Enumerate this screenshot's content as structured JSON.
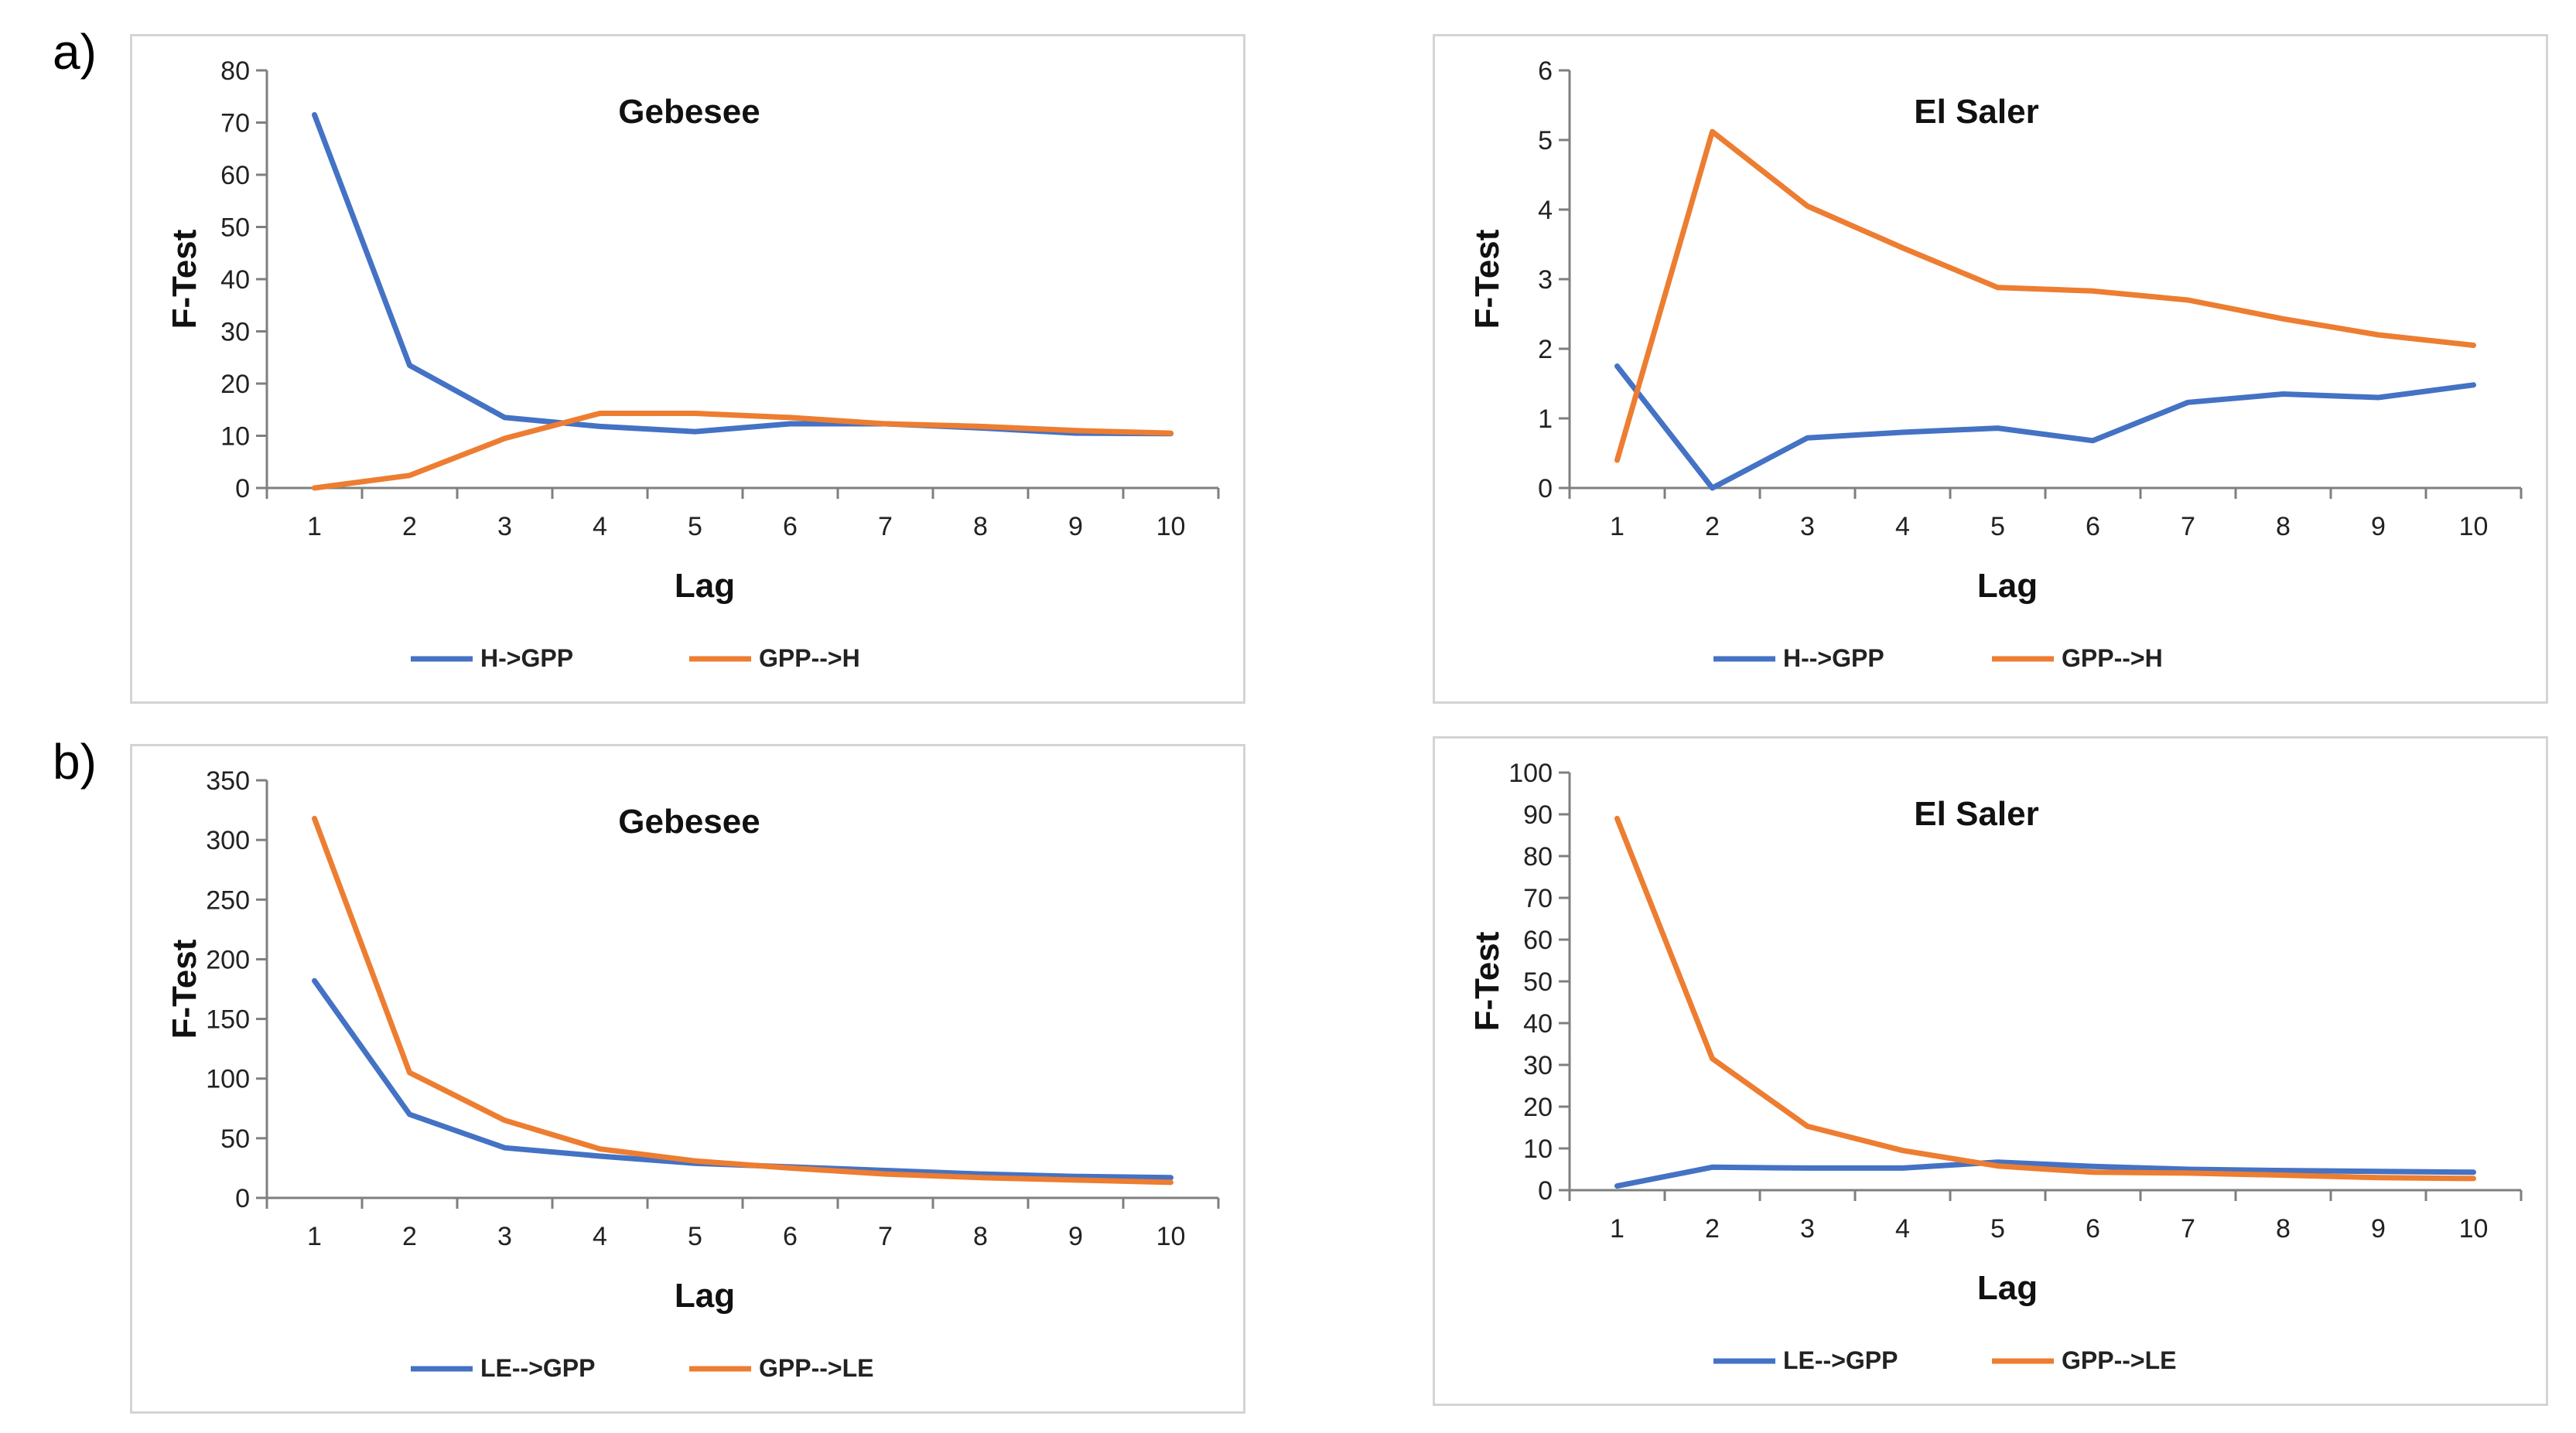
{
  "panels": {
    "a_label": "a)",
    "b_label": "b)"
  },
  "colors": {
    "series1": "#4472C4",
    "series2": "#ED7D31",
    "axis": "#7f7f7f"
  },
  "chart_data": [
    {
      "id": "a-gebesee",
      "type": "line",
      "title": "Gebesee",
      "xlabel": "Lag",
      "ylabel": "F-Test",
      "x": [
        1,
        2,
        3,
        4,
        5,
        6,
        7,
        8,
        9,
        10
      ],
      "x_ticks": [
        "1",
        "2",
        "3",
        "4",
        "5",
        "6",
        "7",
        "8",
        "9",
        "10"
      ],
      "ylim": [
        0,
        80
      ],
      "y_ticks": [
        0,
        10,
        20,
        30,
        40,
        50,
        60,
        70,
        80
      ],
      "series": [
        {
          "name": "H->GPP",
          "values": [
            71.5,
            23.5,
            13.5,
            11.8,
            10.8,
            12.3,
            12.3,
            11.5,
            10.5,
            10.4
          ]
        },
        {
          "name": "GPP-->H",
          "values": [
            0,
            2.4,
            9.5,
            14.3,
            14.3,
            13.5,
            12.3,
            11.8,
            11.0,
            10.5
          ]
        }
      ],
      "legend": "bottom"
    },
    {
      "id": "a-elsaler",
      "type": "line",
      "title": "El Saler",
      "xlabel": "Lag",
      "ylabel": "F-Test",
      "x": [
        1,
        2,
        3,
        4,
        5,
        6,
        7,
        8,
        9,
        10
      ],
      "x_ticks": [
        "1",
        "2",
        "3",
        "4",
        "5",
        "6",
        "7",
        "8",
        "9",
        "10"
      ],
      "ylim": [
        0,
        6
      ],
      "y_ticks": [
        0,
        1,
        2,
        3,
        4,
        5,
        6
      ],
      "series": [
        {
          "name": "H-->GPP",
          "values": [
            1.75,
            0.0,
            0.72,
            0.8,
            0.86,
            0.68,
            1.23,
            1.35,
            1.3,
            1.48
          ]
        },
        {
          "name": "GPP-->H",
          "values": [
            0.4,
            5.12,
            4.05,
            3.45,
            2.88,
            2.83,
            2.7,
            2.43,
            2.2,
            2.05
          ]
        }
      ],
      "legend": "bottom"
    },
    {
      "id": "b-gebesee",
      "type": "line",
      "title": "Gebesee",
      "xlabel": "Lag",
      "ylabel": "F-Test",
      "x": [
        1,
        2,
        3,
        4,
        5,
        6,
        7,
        8,
        9,
        10
      ],
      "x_ticks": [
        "1",
        "2",
        "3",
        "4",
        "5",
        "6",
        "7",
        "8",
        "9",
        "10"
      ],
      "ylim": [
        0,
        350
      ],
      "y_ticks": [
        0,
        50,
        100,
        150,
        200,
        250,
        300,
        350
      ],
      "series": [
        {
          "name": "LE-->GPP",
          "values": [
            182,
            70,
            42,
            35,
            29,
            26,
            23,
            20,
            18,
            17
          ]
        },
        {
          "name": "GPP-->LE",
          "values": [
            318,
            105,
            65,
            41,
            31,
            25,
            20,
            17,
            15,
            13
          ]
        }
      ],
      "legend": "bottom"
    },
    {
      "id": "b-elsaler",
      "type": "line",
      "title": "El Saler",
      "xlabel": "Lag",
      "ylabel": "F-Test",
      "x": [
        1,
        2,
        3,
        4,
        5,
        6,
        7,
        8,
        9,
        10
      ],
      "x_ticks": [
        "1",
        "2",
        "3",
        "4",
        "5",
        "6",
        "7",
        "8",
        "9",
        "10"
      ],
      "ylim": [
        0,
        100
      ],
      "y_ticks": [
        0,
        10,
        20,
        30,
        40,
        50,
        60,
        70,
        80,
        90,
        100
      ],
      "series": [
        {
          "name": "LE-->GPP",
          "values": [
            1,
            5.5,
            5.3,
            5.3,
            6.7,
            5.7,
            5,
            4.7,
            4.5,
            4.3
          ]
        },
        {
          "name": "GPP-->LE",
          "values": [
            89,
            31.5,
            15.3,
            9.5,
            5.8,
            4.3,
            4.1,
            3.6,
            3.0,
            2.8
          ]
        }
      ],
      "legend": "bottom"
    }
  ]
}
